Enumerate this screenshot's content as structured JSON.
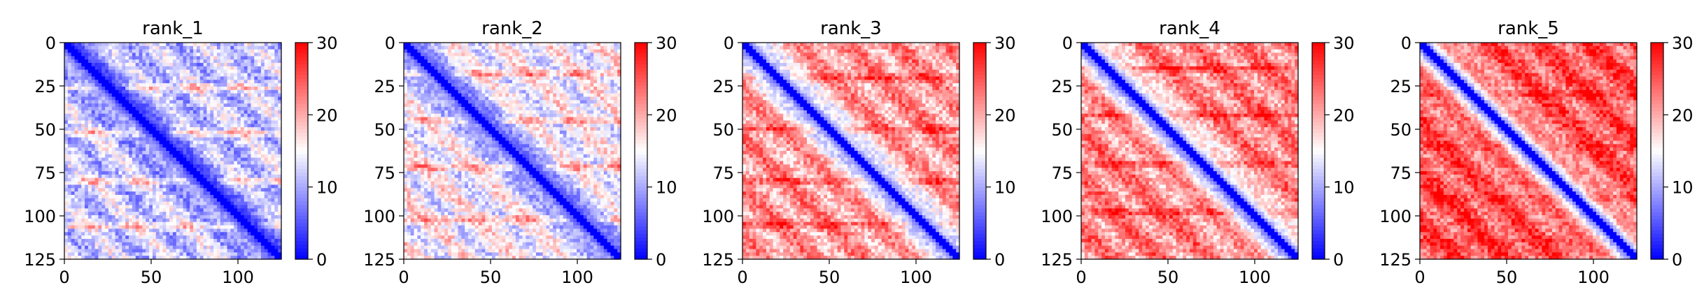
{
  "chart_data": [
    {
      "type": "heatmap",
      "title": "rank_1",
      "x_ticks": [
        "0",
        "50",
        "100"
      ],
      "y_ticks": [
        "0",
        "25",
        "50",
        "75",
        "100",
        "125"
      ],
      "xlim": [
        0,
        125
      ],
      "ylim": [
        125,
        0
      ],
      "colorbar": {
        "min": 0,
        "max": 30,
        "ticks": [
          "0",
          "10",
          "20",
          "30"
        ],
        "colormap": "bwr"
      },
      "off_diagonal_level": 12,
      "stripe_strength": 7,
      "stripe_rows": [
        26,
        52,
        80,
        106
      ]
    },
    {
      "type": "heatmap",
      "title": "rank_2",
      "x_ticks": [
        "0",
        "50",
        "100"
      ],
      "y_ticks": [
        "0",
        "25",
        "50",
        "75",
        "100",
        "125"
      ],
      "xlim": [
        0,
        125
      ],
      "ylim": [
        125,
        0
      ],
      "colorbar": {
        "min": 0,
        "max": 30,
        "ticks": [
          "0",
          "10",
          "20",
          "30"
        ],
        "colormap": "bwr"
      },
      "off_diagonal_level": 15,
      "stripe_strength": 7,
      "stripe_rows": [
        18,
        45,
        72,
        102
      ]
    },
    {
      "type": "heatmap",
      "title": "rank_3",
      "x_ticks": [
        "0",
        "50",
        "100"
      ],
      "y_ticks": [
        "0",
        "25",
        "50",
        "75",
        "100",
        "125"
      ],
      "xlim": [
        0,
        125
      ],
      "ylim": [
        125,
        0
      ],
      "colorbar": {
        "min": 0,
        "max": 30,
        "ticks": [
          "0",
          "10",
          "20",
          "30"
        ],
        "colormap": "bwr"
      },
      "off_diagonal_level": 21,
      "stripe_strength": 6,
      "stripe_rows": [
        20,
        50,
        80,
        105
      ]
    },
    {
      "type": "heatmap",
      "title": "rank_4",
      "x_ticks": [
        "0",
        "50",
        "100"
      ],
      "y_ticks": [
        "0",
        "25",
        "50",
        "75",
        "100",
        "125"
      ],
      "xlim": [
        0,
        125
      ],
      "ylim": [
        125,
        0
      ],
      "colorbar": {
        "min": 0,
        "max": 30,
        "ticks": [
          "0",
          "10",
          "20",
          "30"
        ],
        "colormap": "bwr"
      },
      "off_diagonal_level": 22,
      "stripe_strength": 6,
      "stripe_rows": [
        15,
        42,
        70,
        98
      ]
    },
    {
      "type": "heatmap",
      "title": "rank_5",
      "x_ticks": [
        "0",
        "50",
        "100"
      ],
      "y_ticks": [
        "0",
        "25",
        "50",
        "75",
        "100",
        "125"
      ],
      "xlim": [
        0,
        125
      ],
      "ylim": [
        125,
        0
      ],
      "colorbar": {
        "min": 0,
        "max": 30,
        "ticks": [
          "0",
          "10",
          "20",
          "30"
        ],
        "colormap": "bwr"
      },
      "off_diagonal_level": 25,
      "stripe_strength": 3,
      "stripe_rows": [
        30,
        60,
        90,
        115
      ]
    }
  ]
}
